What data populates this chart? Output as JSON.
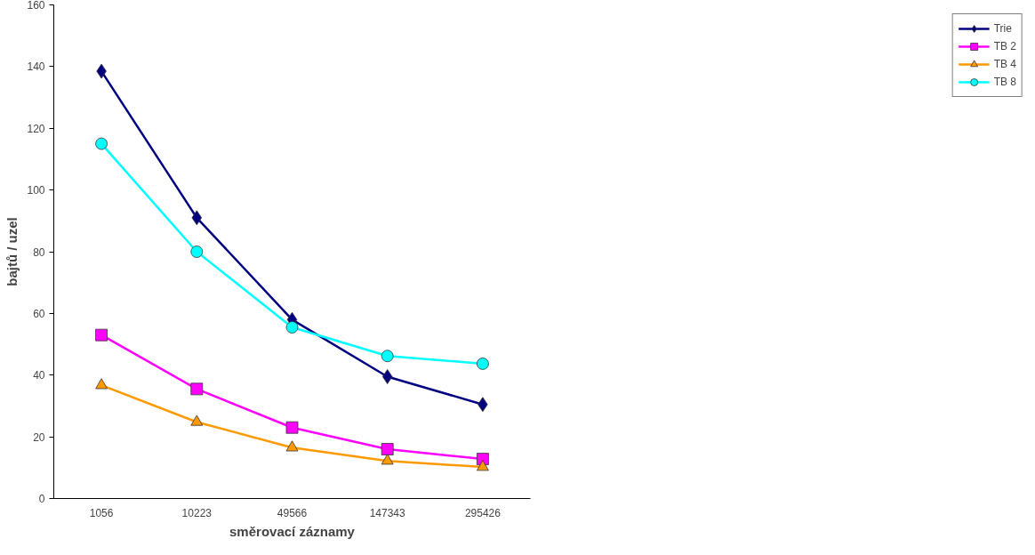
{
  "chart_data": {
    "type": "line",
    "xlabel": "směrovací záznamy",
    "ylabel": "bajtů / uzel",
    "categories": [
      "1056",
      "10223",
      "49566",
      "147343",
      "295426"
    ],
    "ylim": [
      0,
      160
    ],
    "yticks": [
      0,
      20,
      40,
      60,
      80,
      100,
      120,
      140,
      160
    ],
    "grid": false,
    "legend": "right",
    "series": [
      {
        "name": "Trie",
        "color": "#000080",
        "marker": "diamond",
        "values": [
          138.5,
          91,
          58,
          39.5,
          30.5
        ]
      },
      {
        "name": "TB 2",
        "color": "#ff00ff",
        "marker": "square",
        "values": [
          53,
          35.5,
          23,
          16,
          12.8
        ]
      },
      {
        "name": "TB 4",
        "color": "#ff9900",
        "marker": "triangle",
        "values": [
          36.7,
          24.8,
          16.5,
          12.2,
          10.2
        ]
      },
      {
        "name": "TB 8",
        "color": "#00ffff",
        "marker": "circle",
        "values": [
          115,
          80,
          55.5,
          46.2,
          43.7
        ]
      }
    ]
  }
}
